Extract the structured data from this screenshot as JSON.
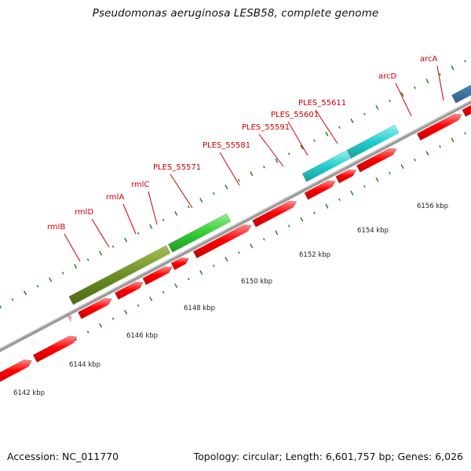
{
  "title": "Pseudomonas aeruginosa LESB58, complete genome",
  "footer": {
    "accession": "Accession: NC_011770",
    "summary": "Topology: circular; Length: 6,601,757 bp; Genes: 6,026"
  },
  "chart_data": {
    "type": "genome-map",
    "title": "Pseudomonas aeruginosa LESB58, complete genome",
    "axis_unit": "kbp",
    "scale_ticks": [
      "6142 kbp",
      "6144 kbp",
      "6146 kbp",
      "6148 kbp",
      "6150 kbp",
      "6152 kbp",
      "6154 kbp",
      "6156 kbp"
    ],
    "gene_labels": [
      "rmlB",
      "rmlD",
      "rmlA",
      "rmlC",
      "PLES_55571",
      "PLES_55581",
      "PLES_55591",
      "PLES_55601",
      "PLES_55611",
      "arcD",
      "arcA"
    ],
    "colors": {
      "cds": "#ff0000",
      "label": "#cc0000",
      "backbone": "#888888",
      "tick": "#1a7a1a",
      "rml_cog": "#6b8e23",
      "ples_55571_cog": "#33cc33",
      "ples_cog": "#22cccc",
      "arcA_cog": "#4682b4",
      "pink_feature": "#ff99cc"
    }
  }
}
